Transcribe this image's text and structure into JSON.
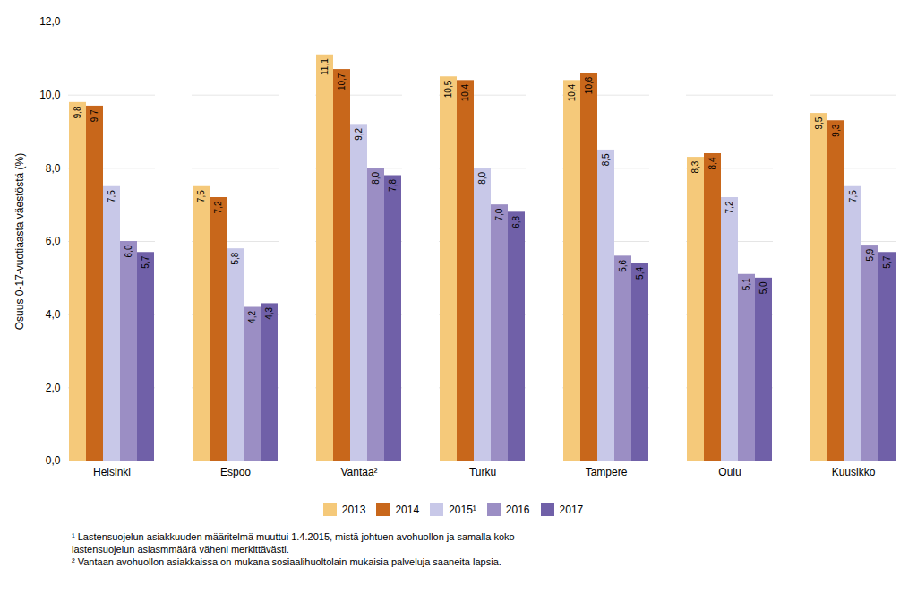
{
  "chart_data": {
    "type": "bar",
    "categories": [
      "Helsinki",
      "Espoo",
      "Vantaa²",
      "Turku",
      "Tampere",
      "Oulu",
      "Kuusikko"
    ],
    "series": [
      {
        "name": "2013",
        "color": "#F5C97A",
        "values": [
          9.8,
          7.5,
          11.1,
          10.5,
          10.4,
          8.3,
          9.5
        ],
        "value_labels": [
          "9,8",
          "7,5",
          "11,1",
          "10,5",
          "10,4",
          "8,3",
          "9,5"
        ]
      },
      {
        "name": "2014",
        "color": "#C8671B",
        "values": [
          9.7,
          7.2,
          10.7,
          10.4,
          10.6,
          8.4,
          9.3
        ],
        "value_labels": [
          "9,7",
          "7,2",
          "10,7",
          "10,4",
          "10,6",
          "8,4",
          "9,3"
        ]
      },
      {
        "name": "2015¹",
        "color": "#C8C8E8",
        "values": [
          7.5,
          5.8,
          9.2,
          8.0,
          8.5,
          7.2,
          7.5
        ],
        "value_labels": [
          "7,5",
          "5,8",
          "9,2",
          "8,0",
          "8,5",
          "7,2",
          "7,5"
        ]
      },
      {
        "name": "2016",
        "color": "#9B8EC4",
        "values": [
          6.0,
          4.2,
          8.0,
          7.0,
          5.6,
          5.1,
          5.9
        ],
        "value_labels": [
          "6,0",
          "4,2",
          "8,0",
          "7,0",
          "5,6",
          "5,1",
          "5,9"
        ]
      },
      {
        "name": "2017",
        "color": "#7060A8",
        "values": [
          5.7,
          4.3,
          7.8,
          6.8,
          5.4,
          5.0,
          5.7
        ],
        "value_labels": [
          "5,7",
          "4,3",
          "7,8",
          "6,8",
          "5,4",
          "5,0",
          "5,7"
        ]
      }
    ],
    "y_label": "Osuus 0-17-vuotiaasta väestöstä (%)",
    "ylim": [
      0,
      12.0
    ],
    "yticks": [
      {
        "value": 0.0,
        "label": "0,0"
      },
      {
        "value": 2.0,
        "label": "2,0"
      },
      {
        "value": 4.0,
        "label": "4,0"
      },
      {
        "value": 6.0,
        "label": "6,0"
      },
      {
        "value": 8.0,
        "label": "8,0"
      },
      {
        "value": 10.0,
        "label": "10,0"
      },
      {
        "value": 12.0,
        "label": "12,0"
      }
    ],
    "grid": true,
    "legend": "bottom",
    "data_labels": true,
    "annotations": [
      "¹ Lastensuojelun asiakkuuden määritelmä muuttui 1.4.2015, mistä johtuen avohuollon ja samalla koko",
      "lastensuojelun asiasmmäärä väheni merkittävästi.",
      "² Vantaan avohuollon asiakkaissa on mukana sosiaalihuoltolain mukaisia palveluja saaneita lapsia."
    ]
  }
}
